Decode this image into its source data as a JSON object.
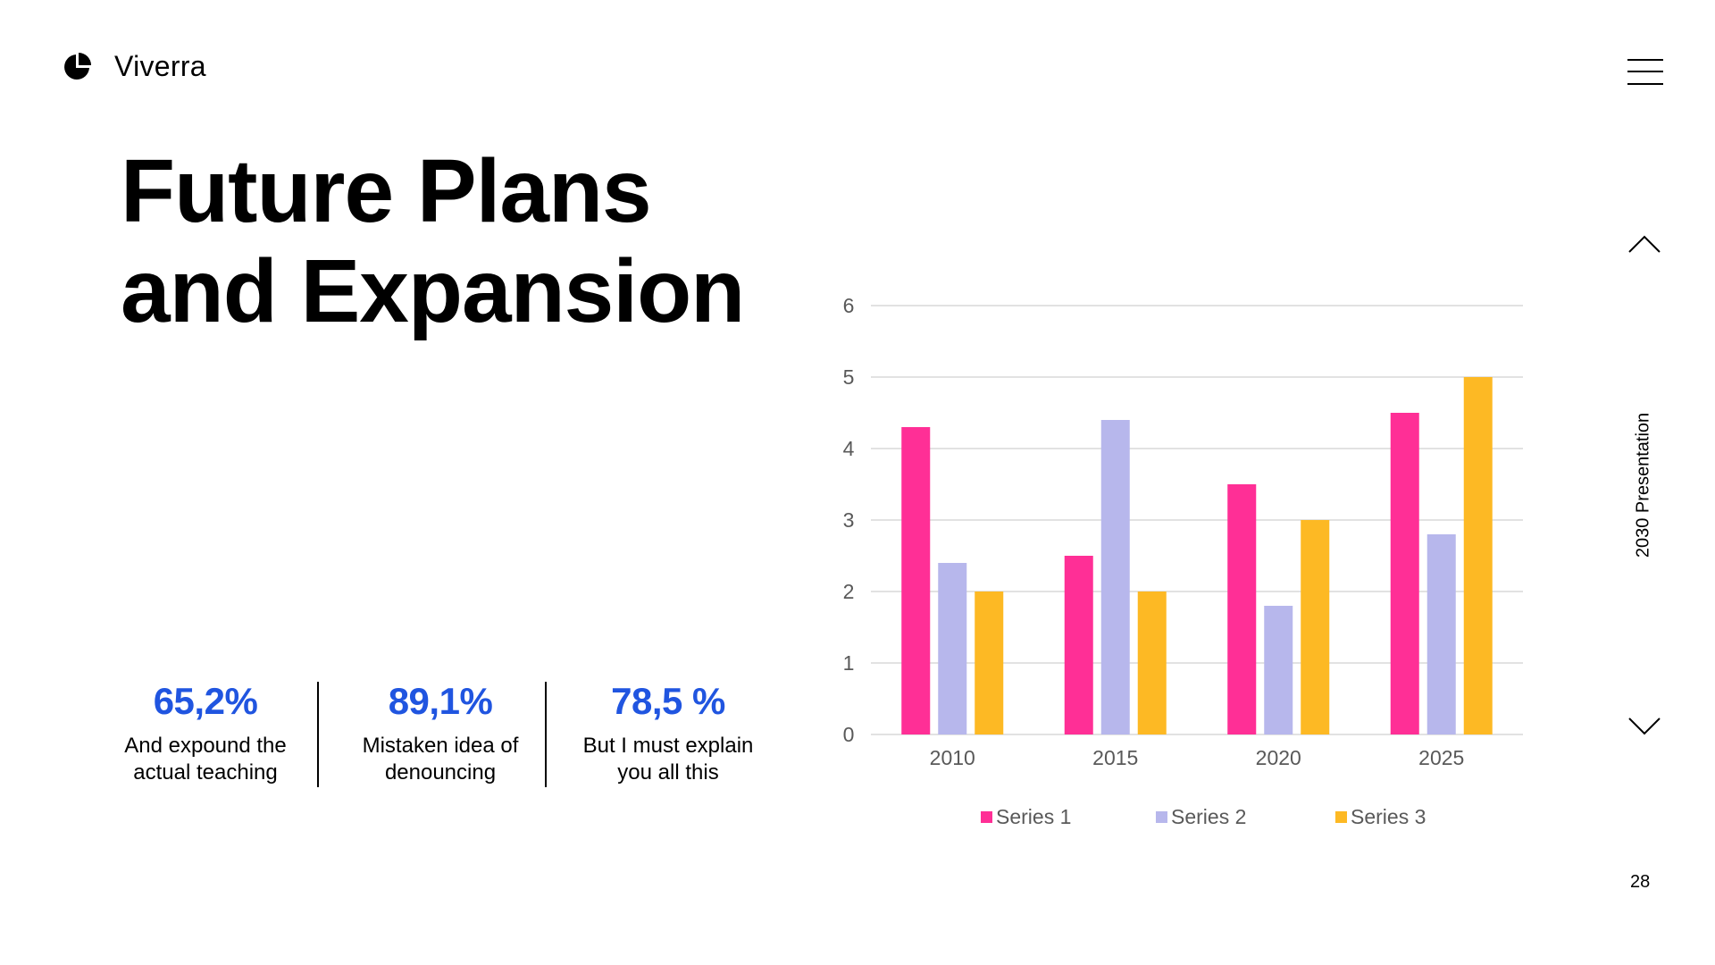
{
  "brand": {
    "name": "Viverra"
  },
  "title": {
    "line1": "Future Plans",
    "line2": "and Expansion"
  },
  "stats": [
    {
      "value": "65,2%",
      "line1": "And expound the",
      "line2": "actual teaching"
    },
    {
      "value": "89,1%",
      "line1": "Mistaken idea of",
      "line2": "denouncing"
    },
    {
      "value": "78,5 %",
      "line1": "But I must explain",
      "line2": "you all this"
    }
  ],
  "side": {
    "label": "2030 Presentation",
    "page": "28"
  },
  "colors": {
    "accent": "#2055e0",
    "series1": "#ff2f96",
    "series2": "#b7b7ec",
    "series3": "#fdb924"
  },
  "chart_data": {
    "type": "bar",
    "categories": [
      "2010",
      "2015",
      "2020",
      "2025"
    ],
    "series": [
      {
        "name": "Series 1",
        "values": [
          4.3,
          2.5,
          3.5,
          4.5
        ]
      },
      {
        "name": "Series 2",
        "values": [
          2.4,
          4.4,
          1.8,
          2.8
        ]
      },
      {
        "name": "Series 3",
        "values": [
          2.0,
          2.0,
          3.0,
          5.0
        ]
      }
    ],
    "ylim": [
      0,
      6
    ],
    "yticks": [
      "0",
      "1",
      "2",
      "3",
      "4",
      "5",
      "6"
    ],
    "grid": true,
    "legend": "bottom",
    "title": "",
    "xlabel": "",
    "ylabel": ""
  }
}
